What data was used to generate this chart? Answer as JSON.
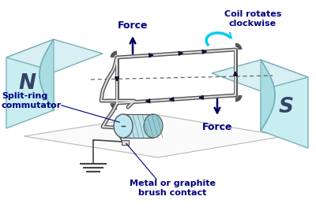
{
  "bg_color": "#ffffff",
  "magnet_color": "#c8eef2",
  "magnet_edge": "#7ab0ba",
  "label_color": "#000080",
  "coil_fill": "#f0f0f0",
  "coil_edge": "#222222",
  "coil_line": "#333333",
  "arrow_color": "#000060",
  "cyan_arc": "#00ccee",
  "ground_color": "#444444",
  "N_label": "N",
  "S_label": "S",
  "force_top": "Force",
  "force_bot": "Force",
  "coil_rotates": "Coil rotates\nclockwise",
  "split_ring": "Split-ring\ncommutator",
  "metal_brush": "Metal or graphite\nbrush contact"
}
